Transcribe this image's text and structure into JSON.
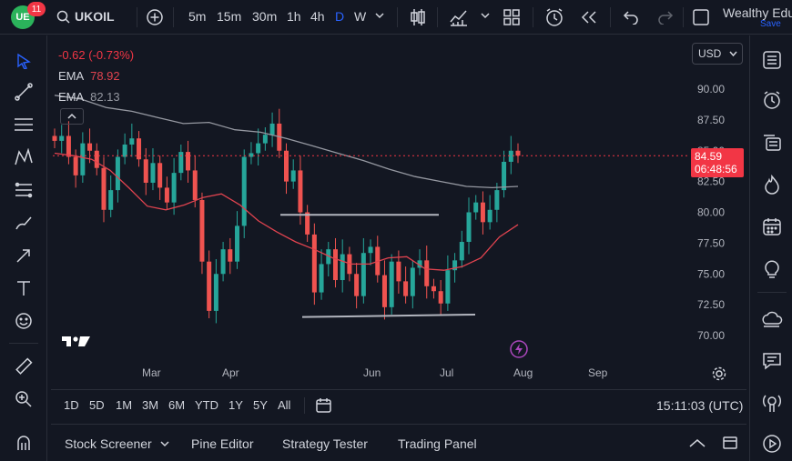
{
  "topbar": {
    "logo_text": "UE",
    "notification_count": "11",
    "symbol": "UKOIL",
    "intervals": [
      "5m",
      "15m",
      "30m",
      "1h",
      "4h",
      "D",
      "W"
    ],
    "active_interval": "D",
    "account_name": "Wealthy Edu",
    "save_label": "Save"
  },
  "chart": {
    "change": "-0.62 (-0.73%)",
    "ema1_label": "EMA",
    "ema1_value": "78.92",
    "ema2_label": "EMA",
    "ema2_value": "82.13",
    "currency": "USD",
    "price_tag": "84.59",
    "countdown": "06:48:56",
    "price_levels": [
      "90.00",
      "87.50",
      "85.00",
      "82.50",
      "80.00",
      "77.50",
      "75.00",
      "72.50",
      "70.00"
    ],
    "months": [
      "Mar",
      "Apr",
      "Jun",
      "Jul",
      "Aug",
      "Sep"
    ],
    "colors": {
      "up": "#26a69a",
      "down": "#ef5350",
      "ema_slow": "#9598a1",
      "ema_fast": "#e0434f",
      "background": "#131722"
    }
  },
  "chart_data": {
    "type": "candlestick",
    "title": "UKOIL",
    "xlabel": "",
    "ylabel": "USD",
    "ylim": [
      68.5,
      92.0
    ],
    "x_ticks": [
      "Mar",
      "Apr",
      "Jun",
      "Jul",
      "Aug",
      "Sep"
    ],
    "close_path": [
      85.8,
      86.2,
      84.5,
      83.0,
      85.6,
      85.0,
      83.6,
      80.2,
      81.8,
      84.5,
      85.5,
      86.0,
      84.3,
      82.4,
      84.0,
      82.0,
      80.8,
      83.2,
      84.9,
      83.4,
      81.0,
      76.0,
      72.0,
      75.0,
      77.0,
      76.0,
      78.9,
      84.5,
      84.8,
      85.6,
      86.3,
      87.2,
      85.0,
      82.5,
      83.4,
      80.0,
      78.2,
      73.5,
      75.8,
      77.0,
      74.5,
      76.6,
      75.0,
      73.2,
      76.7,
      77.2,
      74.9,
      72.3,
      76.0,
      74.4,
      73.2,
      75.5,
      76.1,
      74.0,
      73.6,
      72.6,
      75.3,
      76.1,
      77.6,
      80.0,
      80.8,
      79.2,
      80.2,
      81.8,
      84.1,
      85.0,
      84.6
    ],
    "ema_fast": [
      84.8,
      84.6,
      84.3,
      83.4,
      82.0,
      80.5,
      80.2,
      80.6,
      81.2,
      81.5,
      80.6,
      79.3,
      78.4,
      77.6,
      77.0,
      76.3,
      75.8,
      75.8,
      76.3,
      76.4,
      75.4,
      75.3,
      75.6,
      76.3,
      78.0,
      79.0
    ],
    "ema_slow": [
      89.5,
      89.2,
      88.5,
      88.2,
      87.7,
      87.2,
      87.3,
      86.7,
      86.5,
      86.0,
      85.4,
      84.8,
      84.2,
      83.5,
      82.9,
      82.5,
      82.1,
      82.0,
      82.1
    ],
    "resistance": 79.8,
    "support_low": 71.5,
    "support_high": 71.7,
    "last_price": 84.59
  },
  "timebar": {
    "ranges": [
      "1D",
      "5D",
      "1M",
      "3M",
      "6M",
      "YTD",
      "1Y",
      "5Y",
      "All"
    ],
    "clock": "15:11:03 (UTC)"
  },
  "footer": {
    "tabs": [
      "Stock Screener",
      "Pine Editor",
      "Strategy Tester",
      "Trading Panel"
    ]
  }
}
